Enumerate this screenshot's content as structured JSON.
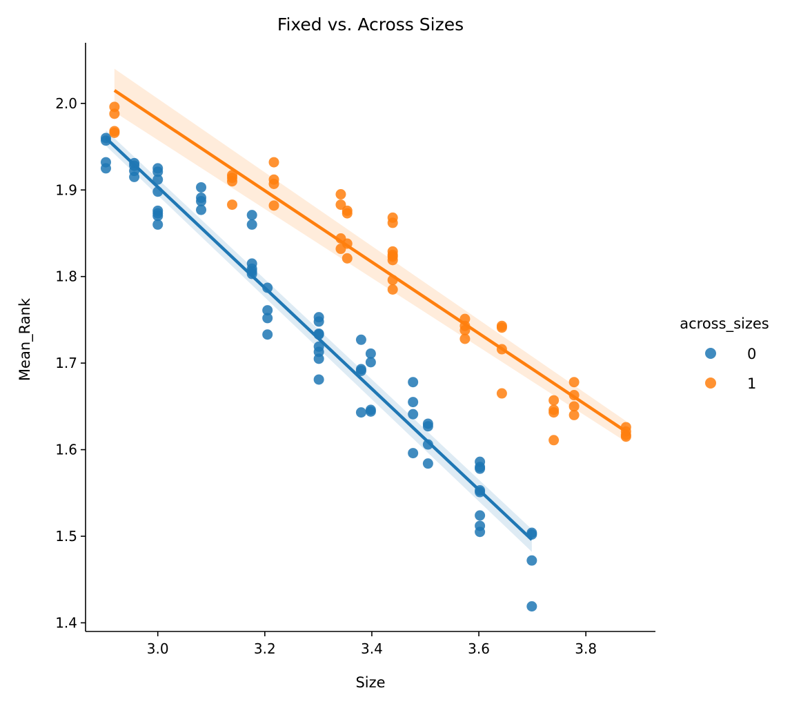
{
  "chart_data": {
    "type": "scatter",
    "title": "Fixed vs. Across Sizes",
    "xlabel": "Size",
    "ylabel": "Mean_Rank",
    "xlim": [
      2.865,
      3.93
    ],
    "ylim": [
      1.39,
      2.07
    ],
    "xticks": [
      3.0,
      3.2,
      3.4,
      3.6,
      3.8
    ],
    "xtick_labels": [
      "3.0",
      "3.2",
      "3.4",
      "3.6",
      "3.8"
    ],
    "yticks": [
      1.4,
      1.5,
      1.6,
      1.7,
      1.8,
      1.9,
      2.0
    ],
    "ytick_labels": [
      "1.4",
      "1.5",
      "1.6",
      "1.7",
      "1.8",
      "1.9",
      "2.0"
    ],
    "grid": false,
    "legend": {
      "title": "across_sizes",
      "position": "right"
    },
    "series": [
      {
        "name": "0",
        "color": "#1f77b4",
        "points": [
          [
            2.903,
            1.96
          ],
          [
            2.903,
            1.957
          ],
          [
            2.903,
            1.932
          ],
          [
            2.903,
            1.925
          ],
          [
            2.956,
            1.931
          ],
          [
            2.956,
            1.928
          ],
          [
            2.956,
            1.922
          ],
          [
            2.956,
            1.915
          ],
          [
            3.0,
            1.925
          ],
          [
            3.0,
            1.921
          ],
          [
            3.0,
            1.912
          ],
          [
            3.0,
            1.898
          ],
          [
            3.0,
            1.876
          ],
          [
            3.0,
            1.873
          ],
          [
            3.0,
            1.87
          ],
          [
            3.0,
            1.86
          ],
          [
            3.081,
            1.903
          ],
          [
            3.081,
            1.891
          ],
          [
            3.081,
            1.887
          ],
          [
            3.081,
            1.877
          ],
          [
            3.176,
            1.871
          ],
          [
            3.176,
            1.86
          ],
          [
            3.176,
            1.815
          ],
          [
            3.176,
            1.809
          ],
          [
            3.176,
            1.806
          ],
          [
            3.176,
            1.803
          ],
          [
            3.205,
            1.787
          ],
          [
            3.205,
            1.761
          ],
          [
            3.205,
            1.752
          ],
          [
            3.205,
            1.733
          ],
          [
            3.301,
            1.753
          ],
          [
            3.301,
            1.748
          ],
          [
            3.301,
            1.734
          ],
          [
            3.301,
            1.733
          ],
          [
            3.301,
            1.719
          ],
          [
            3.301,
            1.713
          ],
          [
            3.301,
            1.705
          ],
          [
            3.301,
            1.681
          ],
          [
            3.38,
            1.727
          ],
          [
            3.38,
            1.693
          ],
          [
            3.38,
            1.691
          ],
          [
            3.38,
            1.643
          ],
          [
            3.398,
            1.711
          ],
          [
            3.398,
            1.701
          ],
          [
            3.398,
            1.646
          ],
          [
            3.398,
            1.644
          ],
          [
            3.477,
            1.678
          ],
          [
            3.477,
            1.655
          ],
          [
            3.477,
            1.641
          ],
          [
            3.477,
            1.596
          ],
          [
            3.505,
            1.63
          ],
          [
            3.505,
            1.627
          ],
          [
            3.505,
            1.606
          ],
          [
            3.505,
            1.584
          ],
          [
            3.602,
            1.586
          ],
          [
            3.602,
            1.58
          ],
          [
            3.602,
            1.578
          ],
          [
            3.602,
            1.553
          ],
          [
            3.602,
            1.551
          ],
          [
            3.602,
            1.524
          ],
          [
            3.602,
            1.512
          ],
          [
            3.602,
            1.505
          ],
          [
            3.699,
            1.504
          ],
          [
            3.699,
            1.502
          ],
          [
            3.699,
            1.472
          ],
          [
            3.699,
            1.419
          ]
        ],
        "fit": {
          "x": [
            2.903,
            3.699
          ],
          "y": [
            1.96,
            1.496
          ]
        },
        "ci_upper": [
          1.969,
          1.508
        ],
        "ci_lower": [
          1.951,
          1.482
        ]
      },
      {
        "name": "1",
        "color": "#ff7f0e",
        "points": [
          [
            2.919,
            1.996
          ],
          [
            2.919,
            1.988
          ],
          [
            2.919,
            1.968
          ],
          [
            2.919,
            1.966
          ],
          [
            3.139,
            1.917
          ],
          [
            3.139,
            1.914
          ],
          [
            3.139,
            1.91
          ],
          [
            3.139,
            1.883
          ],
          [
            3.217,
            1.932
          ],
          [
            3.217,
            1.912
          ],
          [
            3.217,
            1.907
          ],
          [
            3.217,
            1.882
          ],
          [
            3.342,
            1.895
          ],
          [
            3.342,
            1.883
          ],
          [
            3.342,
            1.844
          ],
          [
            3.342,
            1.832
          ],
          [
            3.354,
            1.876
          ],
          [
            3.354,
            1.873
          ],
          [
            3.354,
            1.838
          ],
          [
            3.354,
            1.821
          ],
          [
            3.439,
            1.868
          ],
          [
            3.439,
            1.862
          ],
          [
            3.439,
            1.829
          ],
          [
            3.439,
            1.825
          ],
          [
            3.439,
            1.823
          ],
          [
            3.439,
            1.819
          ],
          [
            3.439,
            1.796
          ],
          [
            3.439,
            1.785
          ],
          [
            3.574,
            1.751
          ],
          [
            3.574,
            1.743
          ],
          [
            3.574,
            1.738
          ],
          [
            3.574,
            1.728
          ],
          [
            3.643,
            1.743
          ],
          [
            3.643,
            1.741
          ],
          [
            3.643,
            1.716
          ],
          [
            3.643,
            1.665
          ],
          [
            3.74,
            1.657
          ],
          [
            3.74,
            1.646
          ],
          [
            3.74,
            1.643
          ],
          [
            3.74,
            1.611
          ],
          [
            3.778,
            1.678
          ],
          [
            3.778,
            1.663
          ],
          [
            3.778,
            1.65
          ],
          [
            3.778,
            1.64
          ],
          [
            3.875,
            1.626
          ],
          [
            3.875,
            1.621
          ],
          [
            3.875,
            1.617
          ],
          [
            3.875,
            1.615
          ]
        ],
        "fit": {
          "x": [
            2.919,
            3.875
          ],
          "y": [
            2.015,
            1.621
          ]
        },
        "ci_upper": [
          2.04,
          1.633
        ],
        "ci_lower": [
          1.99,
          1.609
        ]
      }
    ]
  }
}
